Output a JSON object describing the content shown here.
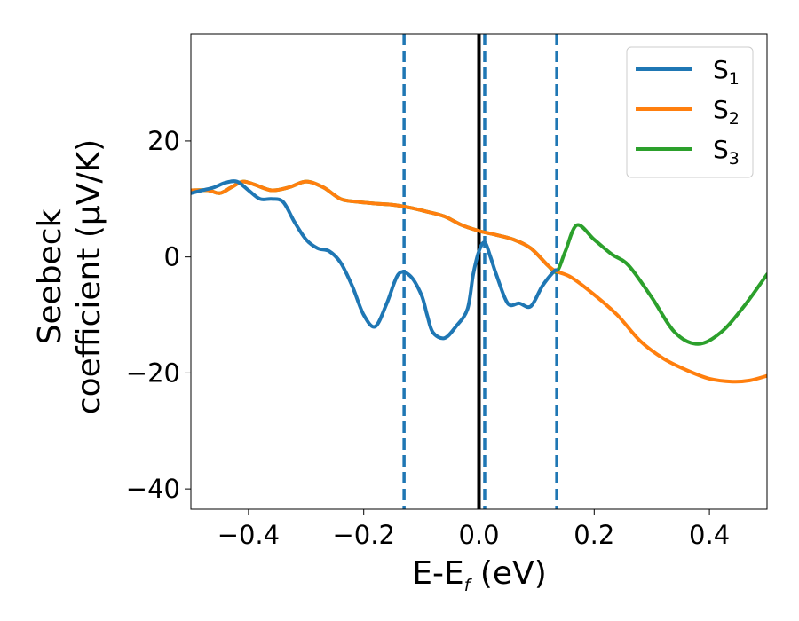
{
  "chart_data": {
    "type": "line",
    "title": "",
    "xlabel": {
      "main": "E-E",
      "sub": "f",
      "unit": " (eV)"
    },
    "ylabel": {
      "line1": "Seebeck",
      "line2": "coefficient  (μV/K)"
    },
    "xlim": [
      -0.5,
      0.5
    ],
    "ylim": [
      -43.5,
      38.5
    ],
    "xticks": [
      -0.4,
      -0.2,
      0.0,
      0.2,
      0.4
    ],
    "xtick_labels": [
      "−0.4",
      "−0.2",
      "0.0",
      "0.2",
      "0.4"
    ],
    "yticks": [
      -40,
      -20,
      0,
      20
    ],
    "ytick_labels": [
      "−40",
      "−20",
      "0",
      "20"
    ],
    "grid": false,
    "legend_position": "top-right",
    "vlines": [
      {
        "x": -0.13,
        "style": "dashed",
        "color": "#1f77b4"
      },
      {
        "x": 0.0,
        "style": "solid",
        "color": "#000000"
      },
      {
        "x": 0.01,
        "style": "dashed",
        "color": "#1f77b4"
      },
      {
        "x": 0.135,
        "style": "dashed",
        "color": "#1f77b4"
      }
    ],
    "series": [
      {
        "name": "S",
        "sub": "1",
        "color": "#1f77b4",
        "x": [
          -0.5,
          -0.48,
          -0.46,
          -0.44,
          -0.42,
          -0.4,
          -0.38,
          -0.36,
          -0.34,
          -0.32,
          -0.3,
          -0.28,
          -0.26,
          -0.24,
          -0.22,
          -0.2,
          -0.18,
          -0.16,
          -0.14,
          -0.12,
          -0.1,
          -0.09,
          -0.08,
          -0.06,
          -0.04,
          -0.02,
          -0.01,
          0.0,
          0.01,
          0.02,
          0.03,
          0.05,
          0.07,
          0.09,
          0.11,
          0.13,
          0.135
        ],
        "y": [
          11.0,
          11.5,
          12.0,
          12.8,
          13.0,
          11.5,
          10.0,
          10.0,
          9.5,
          6.0,
          3.0,
          1.5,
          1.0,
          -1.0,
          -5.0,
          -10.0,
          -12.0,
          -8.0,
          -3.0,
          -3.2,
          -6.5,
          -10.0,
          -13.0,
          -14.0,
          -12.0,
          -9.0,
          -3.0,
          1.0,
          2.5,
          0.0,
          -3.0,
          -8.0,
          -8.0,
          -8.5,
          -5.0,
          -2.5,
          -2.3
        ]
      },
      {
        "name": "S",
        "sub": "2",
        "color": "#ff7f0e",
        "x": [
          -0.5,
          -0.47,
          -0.45,
          -0.43,
          -0.41,
          -0.39,
          -0.36,
          -0.33,
          -0.3,
          -0.27,
          -0.24,
          -0.21,
          -0.18,
          -0.15,
          -0.12,
          -0.09,
          -0.06,
          -0.03,
          0.0,
          0.03,
          0.06,
          0.09,
          0.12,
          0.135,
          0.16,
          0.2,
          0.24,
          0.28,
          0.32,
          0.36,
          0.4,
          0.44,
          0.47,
          0.5
        ],
        "y": [
          11.5,
          11.5,
          11.0,
          12.0,
          13.0,
          12.5,
          11.5,
          12.0,
          13.0,
          12.0,
          10.0,
          9.5,
          9.2,
          9.0,
          8.5,
          7.8,
          7.0,
          5.5,
          4.5,
          3.8,
          3.0,
          1.5,
          -1.5,
          -2.5,
          -3.5,
          -6.5,
          -10.0,
          -14.5,
          -17.5,
          -19.5,
          -21.0,
          -21.5,
          -21.3,
          -20.5
        ]
      },
      {
        "name": "S",
        "sub": "3",
        "color": "#2ca02c",
        "x": [
          -0.5,
          -0.47,
          -0.45,
          -0.43,
          -0.41,
          -0.39,
          -0.36,
          -0.33,
          -0.3,
          -0.27,
          -0.24,
          -0.21,
          -0.18,
          -0.15,
          -0.12,
          -0.09,
          -0.06,
          -0.03,
          0.0,
          0.03,
          0.06,
          0.09,
          0.12,
          0.135,
          0.15,
          0.17,
          0.2,
          0.23,
          0.26,
          0.3,
          0.34,
          0.38,
          0.42,
          0.46,
          0.5
        ],
        "y": [
          11.5,
          11.5,
          11.0,
          12.0,
          13.0,
          12.5,
          11.5,
          12.0,
          13.0,
          12.0,
          10.0,
          9.5,
          9.2,
          9.0,
          8.5,
          7.8,
          7.0,
          5.5,
          4.5,
          3.8,
          3.0,
          1.5,
          -1.5,
          -2.5,
          1.0,
          5.5,
          3.0,
          0.5,
          -1.5,
          -7.0,
          -13.0,
          -15.0,
          -13.0,
          -8.5,
          -3.0
        ]
      }
    ]
  }
}
